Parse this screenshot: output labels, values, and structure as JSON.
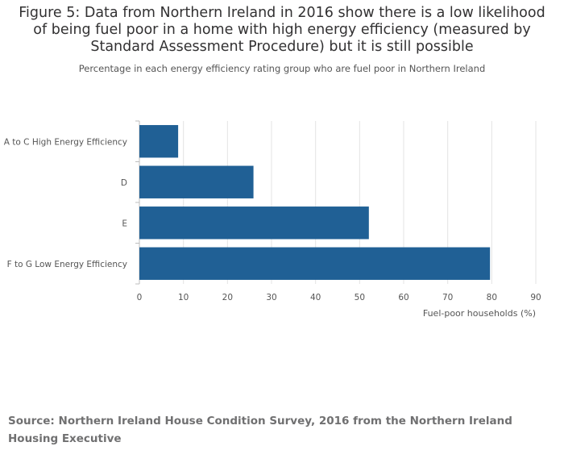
{
  "chart_data": {
    "type": "bar",
    "orientation": "horizontal",
    "title": "Figure 5: Data from Northern Ireland in 2016 show there is a low likelihood of being fuel poor in a home with high energy efficiency (measured by Standard Assessment Procedure) but it is still possible",
    "subtitle": "Percentage in each energy efficiency rating group who are fuel poor in Northern Ireland",
    "categories": [
      "A to C High Energy Efficiency",
      "D",
      "E",
      "F to G Low Energy Efficiency"
    ],
    "values": [
      8.8,
      25.9,
      52.1,
      79.6
    ],
    "xlabel": "Fuel-poor households (%)",
    "ylabel": "",
    "xlim": [
      0,
      90
    ],
    "xticks": [
      "0",
      "10",
      "20",
      "30",
      "40",
      "50",
      "60",
      "70",
      "80",
      "90"
    ],
    "grid": true,
    "bar_color": "#206095"
  },
  "source": "Source: Northern Ireland House Condition Survey, 2016 from the Northern Ireland Housing Executive"
}
